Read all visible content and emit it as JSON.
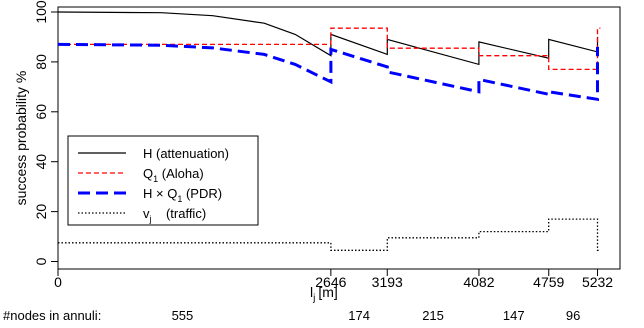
{
  "chart_data": {
    "type": "line",
    "ylabel": "success probability %",
    "xlabel": "l",
    "xlabel_sub": "j",
    "xlabel_unit": "[m]",
    "xlim": [
      0,
      5450
    ],
    "ylim": [
      -3,
      102
    ],
    "x_ticks": [
      {
        "value": 0,
        "label": "0"
      },
      {
        "value": 2646,
        "label": "2646"
      },
      {
        "value": 3193,
        "label": "3193"
      },
      {
        "value": 4082,
        "label": "4082"
      },
      {
        "value": 4759,
        "label": "4759"
      },
      {
        "value": 5232,
        "label": "5232"
      }
    ],
    "y_ticks": [
      {
        "value": 0,
        "label": "0"
      },
      {
        "value": 20,
        "label": "20"
      },
      {
        "value": 40,
        "label": "40"
      },
      {
        "value": 60,
        "label": "60"
      },
      {
        "value": 80,
        "label": "80"
      },
      {
        "value": 100,
        "label": "100"
      }
    ],
    "legend_position": "left",
    "series": [
      {
        "key": "H",
        "name": "H (attenuation)",
        "color": "#000000",
        "style": "solid",
        "x": [
          0,
          1000,
          1500,
          2000,
          2300,
          2646,
          2646,
          3193,
          3193,
          4082,
          4082,
          4759,
          4759,
          5232,
          5232
        ],
        "y": [
          100,
          99.7,
          98.5,
          95.5,
          91,
          82.5,
          91,
          83,
          89,
          79,
          88,
          81.5,
          89,
          84,
          90
        ]
      },
      {
        "key": "Q1",
        "name": "Q1 (Aloha)",
        "name_main": "Q",
        "name_sub": "1",
        "name_rest": " (Aloha)",
        "color": "#ff0000",
        "style": "dashed",
        "x": [
          0,
          2646,
          2646,
          3193,
          3193,
          4082,
          4082,
          4759,
          4759,
          5232,
          5232,
          5260
        ],
        "y": [
          87,
          87,
          93.5,
          93.5,
          85.5,
          85.5,
          82.5,
          82.5,
          77,
          77,
          93.5,
          93.5
        ]
      },
      {
        "key": "HQ1",
        "name": "H × Q1 (PDR)",
        "name_main": "H × Q",
        "name_sub": "1",
        "name_rest": " (PDR)",
        "color": "#0000ff",
        "style": "thick-dashed",
        "x": [
          0,
          1000,
          1500,
          2000,
          2300,
          2646,
          2646,
          3193,
          3193,
          4082,
          4082,
          4759,
          4759,
          5232,
          5232
        ],
        "y": [
          87,
          86.7,
          85.6,
          83,
          79,
          72,
          85,
          78,
          76,
          68,
          73,
          67,
          68,
          65,
          86
        ]
      },
      {
        "key": "vj",
        "name": "vj (traffic)",
        "name_main": "v",
        "name_sub": "j",
        "name_rest": "    (traffic)",
        "color": "#000000",
        "style": "dotted",
        "x": [
          0,
          2646,
          2646,
          3193,
          3193,
          4082,
          4082,
          4759,
          4759,
          5232,
          5232,
          5260
        ],
        "y": [
          7.5,
          7.5,
          4.5,
          4.5,
          9.5,
          9.5,
          12,
          12,
          17,
          17,
          4.5,
          4.5
        ]
      }
    ],
    "annuli_label": "#nodes in annuli:",
    "annuli_counts": [
      "555",
      "174",
      "215",
      "147",
      "96"
    ]
  }
}
